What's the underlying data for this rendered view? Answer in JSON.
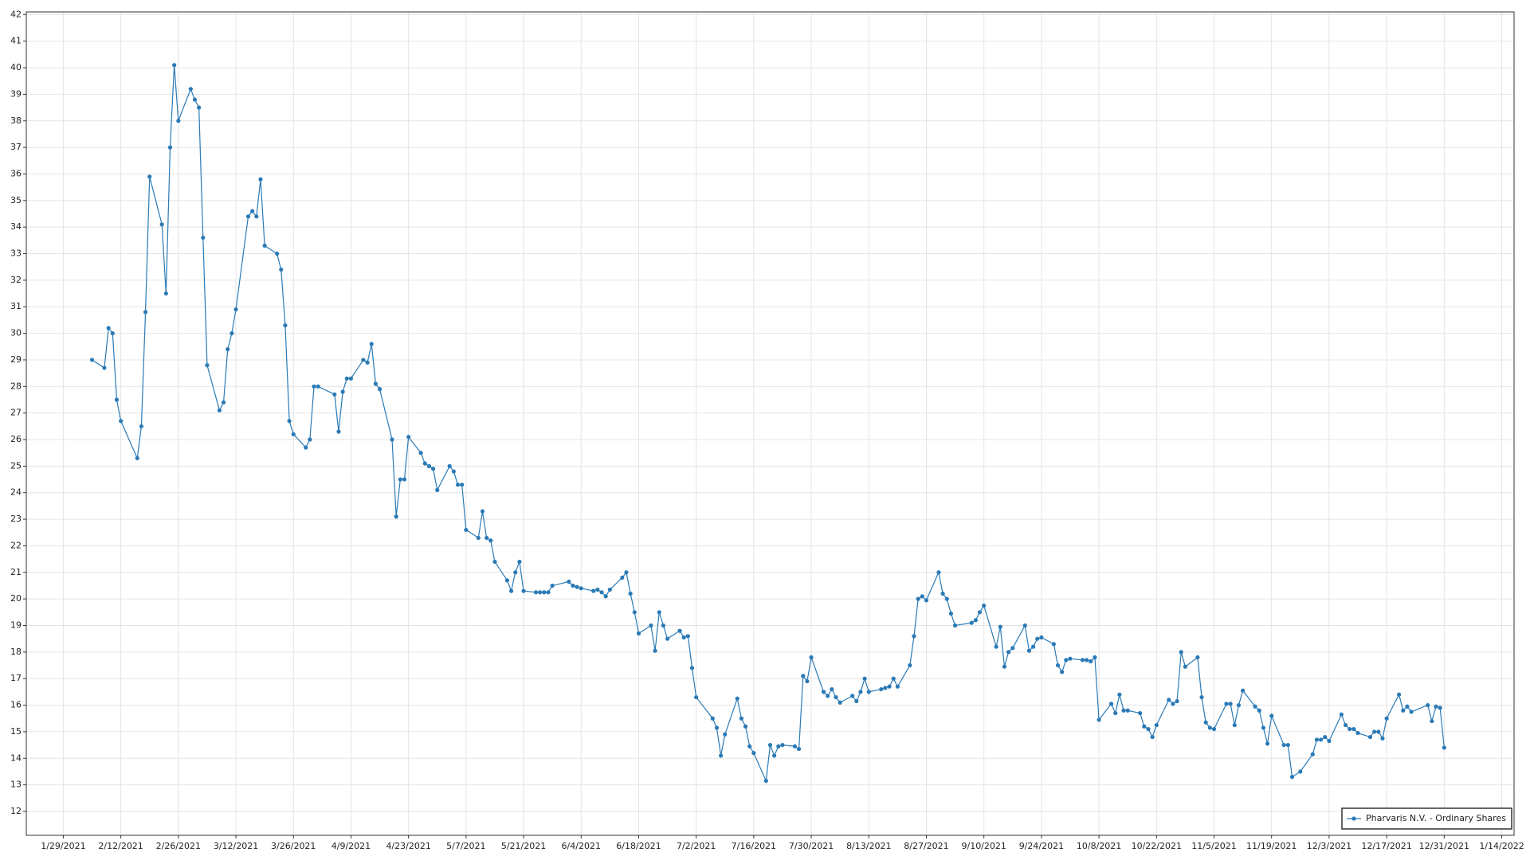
{
  "chart_data": {
    "type": "line",
    "series": [
      {
        "name": "Pharvaris N.V. - Ordinary Shares",
        "color": "#2a7ab6",
        "x": [
          "2/5/2021",
          "2/8/2021",
          "2/9/2021",
          "2/10/2021",
          "2/11/2021",
          "2/12/2021",
          "2/16/2021",
          "2/17/2021",
          "2/18/2021",
          "2/19/2021",
          "2/22/2021",
          "2/23/2021",
          "2/24/2021",
          "2/25/2021",
          "2/26/2021",
          "3/1/2021",
          "3/2/2021",
          "3/3/2021",
          "3/4/2021",
          "3/5/2021",
          "3/8/2021",
          "3/9/2021",
          "3/10/2021",
          "3/11/2021",
          "3/12/2021",
          "3/15/2021",
          "3/16/2021",
          "3/17/2021",
          "3/18/2021",
          "3/19/2021",
          "3/22/2021",
          "3/23/2021",
          "3/24/2021",
          "3/25/2021",
          "3/26/2021",
          "3/29/2021",
          "3/30/2021",
          "3/31/2021",
          "4/1/2021",
          "4/5/2021",
          "4/6/2021",
          "4/7/2021",
          "4/8/2021",
          "4/9/2021",
          "4/12/2021",
          "4/13/2021",
          "4/14/2021",
          "4/15/2021",
          "4/16/2021",
          "4/19/2021",
          "4/20/2021",
          "4/21/2021",
          "4/22/2021",
          "4/23/2021",
          "4/26/2021",
          "4/27/2021",
          "4/28/2021",
          "4/29/2021",
          "4/30/2021",
          "5/3/2021",
          "5/4/2021",
          "5/5/2021",
          "5/6/2021",
          "5/7/2021",
          "5/10/2021",
          "5/11/2021",
          "5/12/2021",
          "5/13/2021",
          "5/14/2021",
          "5/17/2021",
          "5/18/2021",
          "5/19/2021",
          "5/20/2021",
          "5/21/2021",
          "5/24/2021",
          "5/25/2021",
          "5/26/2021",
          "5/27/2021",
          "5/28/2021",
          "6/1/2021",
          "6/2/2021",
          "6/3/2021",
          "6/4/2021",
          "6/7/2021",
          "6/8/2021",
          "6/9/2021",
          "6/10/2021",
          "6/11/2021",
          "6/14/2021",
          "6/15/2021",
          "6/16/2021",
          "6/17/2021",
          "6/18/2021",
          "6/21/2021",
          "6/22/2021",
          "6/23/2021",
          "6/24/2021",
          "6/25/2021",
          "6/28/2021",
          "6/29/2021",
          "6/30/2021",
          "7/1/2021",
          "7/2/2021",
          "7/6/2021",
          "7/7/2021",
          "7/8/2021",
          "7/9/2021",
          "7/12/2021",
          "7/13/2021",
          "7/14/2021",
          "7/15/2021",
          "7/16/2021",
          "7/19/2021",
          "7/20/2021",
          "7/21/2021",
          "7/22/2021",
          "7/23/2021",
          "7/26/2021",
          "7/27/2021",
          "7/28/2021",
          "7/29/2021",
          "7/30/2021",
          "8/2/2021",
          "8/3/2021",
          "8/4/2021",
          "8/5/2021",
          "8/6/2021",
          "8/9/2021",
          "8/10/2021",
          "8/11/2021",
          "8/12/2021",
          "8/13/2021",
          "8/16/2021",
          "8/17/2021",
          "8/18/2021",
          "8/19/2021",
          "8/20/2021",
          "8/23/2021",
          "8/24/2021",
          "8/25/2021",
          "8/26/2021",
          "8/27/2021",
          "8/30/2021",
          "8/31/2021",
          "9/1/2021",
          "9/2/2021",
          "9/3/2021",
          "9/7/2021",
          "9/8/2021",
          "9/9/2021",
          "9/10/2021",
          "9/13/2021",
          "9/14/2021",
          "9/15/2021",
          "9/16/2021",
          "9/17/2021",
          "9/20/2021",
          "9/21/2021",
          "9/22/2021",
          "9/23/2021",
          "9/24/2021",
          "9/27/2021",
          "9/28/2021",
          "9/29/2021",
          "9/30/2021",
          "10/1/2021",
          "10/4/2021",
          "10/5/2021",
          "10/6/2021",
          "10/7/2021",
          "10/8/2021",
          "10/11/2021",
          "10/12/2021",
          "10/13/2021",
          "10/14/2021",
          "10/15/2021",
          "10/18/2021",
          "10/19/2021",
          "10/20/2021",
          "10/21/2021",
          "10/22/2021",
          "10/25/2021",
          "10/26/2021",
          "10/27/2021",
          "10/28/2021",
          "10/29/2021",
          "11/1/2021",
          "11/2/2021",
          "11/3/2021",
          "11/4/2021",
          "11/5/2021",
          "11/8/2021",
          "11/9/2021",
          "11/10/2021",
          "11/11/2021",
          "11/12/2021",
          "11/15/2021",
          "11/16/2021",
          "11/17/2021",
          "11/18/2021",
          "11/19/2021",
          "11/22/2021",
          "11/23/2021",
          "11/24/2021",
          "11/26/2021",
          "11/29/2021",
          "11/30/2021",
          "12/1/2021",
          "12/2/2021",
          "12/3/2021",
          "12/6/2021",
          "12/7/2021",
          "12/8/2021",
          "12/9/2021",
          "12/10/2021",
          "12/13/2021",
          "12/14/2021",
          "12/15/2021",
          "12/16/2021",
          "12/17/2021",
          "12/20/2021",
          "12/21/2021",
          "12/22/2021",
          "12/23/2021",
          "12/27/2021",
          "12/28/2021",
          "12/29/2021",
          "12/30/2021",
          "12/31/2021"
        ],
        "values": [
          29.0,
          28.7,
          30.2,
          30.0,
          27.5,
          26.7,
          25.3,
          26.5,
          30.8,
          35.9,
          34.1,
          31.5,
          37.0,
          40.1,
          38.0,
          39.2,
          38.8,
          38.5,
          33.6,
          28.8,
          27.1,
          27.4,
          29.4,
          30.0,
          30.9,
          34.4,
          34.6,
          34.4,
          35.8,
          33.3,
          33.0,
          32.4,
          30.3,
          26.7,
          26.2,
          25.7,
          26.0,
          28.0,
          28.0,
          27.7,
          26.3,
          27.8,
          28.3,
          28.3,
          29.0,
          28.9,
          29.6,
          28.1,
          27.9,
          26.0,
          23.1,
          24.5,
          24.5,
          26.1,
          25.5,
          25.1,
          25.0,
          24.9,
          24.1,
          25.0,
          24.8,
          24.3,
          24.3,
          22.6,
          22.3,
          23.3,
          22.3,
          22.2,
          21.4,
          20.7,
          20.3,
          21.0,
          21.4,
          20.3,
          20.25,
          20.25,
          20.25,
          20.25,
          20.5,
          20.65,
          20.5,
          20.45,
          20.4,
          20.3,
          20.35,
          20.25,
          20.1,
          20.35,
          20.8,
          21.0,
          20.2,
          19.5,
          18.7,
          19.0,
          18.05,
          19.5,
          19.0,
          18.5,
          18.8,
          18.55,
          18.6,
          17.4,
          16.3,
          15.5,
          15.15,
          14.1,
          14.9,
          16.25,
          15.5,
          15.2,
          14.45,
          14.2,
          13.15,
          14.5,
          14.1,
          14.45,
          14.5,
          14.45,
          14.35,
          17.1,
          16.9,
          17.8,
          16.5,
          16.35,
          16.6,
          16.3,
          16.1,
          16.35,
          16.15,
          16.5,
          17.0,
          16.5,
          16.6,
          16.65,
          16.7,
          17.0,
          16.7,
          17.5,
          18.6,
          20.0,
          20.1,
          19.95,
          21.0,
          20.2,
          20.0,
          19.45,
          19.0,
          19.1,
          19.2,
          19.5,
          19.75,
          18.2,
          18.95,
          17.45,
          18.0,
          18.15,
          19.0,
          18.05,
          18.2,
          18.5,
          18.55,
          18.3,
          17.5,
          17.25,
          17.7,
          17.75,
          17.7,
          17.7,
          17.65,
          17.8,
          15.45,
          16.05,
          15.7,
          16.4,
          15.8,
          15.8,
          15.7,
          15.2,
          15.1,
          14.8,
          15.25,
          16.2,
          16.05,
          16.15,
          18.0,
          17.45,
          17.8,
          16.3,
          15.35,
          15.15,
          15.1,
          16.05,
          16.05,
          15.25,
          16.0,
          16.55,
          15.95,
          15.8,
          15.15,
          14.55,
          15.6,
          14.5,
          14.5,
          13.3,
          13.5,
          14.15,
          14.7,
          14.7,
          14.8,
          14.65,
          15.65,
          15.25,
          15.1,
          15.1,
          14.95,
          14.8,
          15.0,
          15.0,
          14.75,
          15.5,
          16.4,
          15.8,
          15.95,
          15.75,
          16.0,
          15.4,
          15.95,
          15.9,
          14.4
        ]
      }
    ],
    "xlim": [
      "1/20/2021",
      "1/17/2022"
    ],
    "xticks": [
      "1/29/2021",
      "2/12/2021",
      "2/26/2021",
      "3/12/2021",
      "3/26/2021",
      "4/9/2021",
      "4/23/2021",
      "5/7/2021",
      "5/21/2021",
      "6/4/2021",
      "6/18/2021",
      "7/2/2021",
      "7/16/2021",
      "7/30/2021",
      "8/13/2021",
      "8/27/2021",
      "9/10/2021",
      "9/24/2021",
      "10/8/2021",
      "10/22/2021",
      "11/5/2021",
      "11/19/2021",
      "12/3/2021",
      "12/17/2021",
      "12/31/2021",
      "1/14/2022"
    ],
    "ylim": [
      11.1,
      42.1
    ],
    "yticks": [
      12,
      13,
      14,
      15,
      16,
      17,
      18,
      19,
      20,
      21,
      22,
      23,
      24,
      25,
      26,
      27,
      28,
      29,
      30,
      31,
      32,
      33,
      34,
      35,
      36,
      37,
      38,
      39,
      40,
      41,
      42
    ],
    "grid": true,
    "legend": "lower right"
  }
}
